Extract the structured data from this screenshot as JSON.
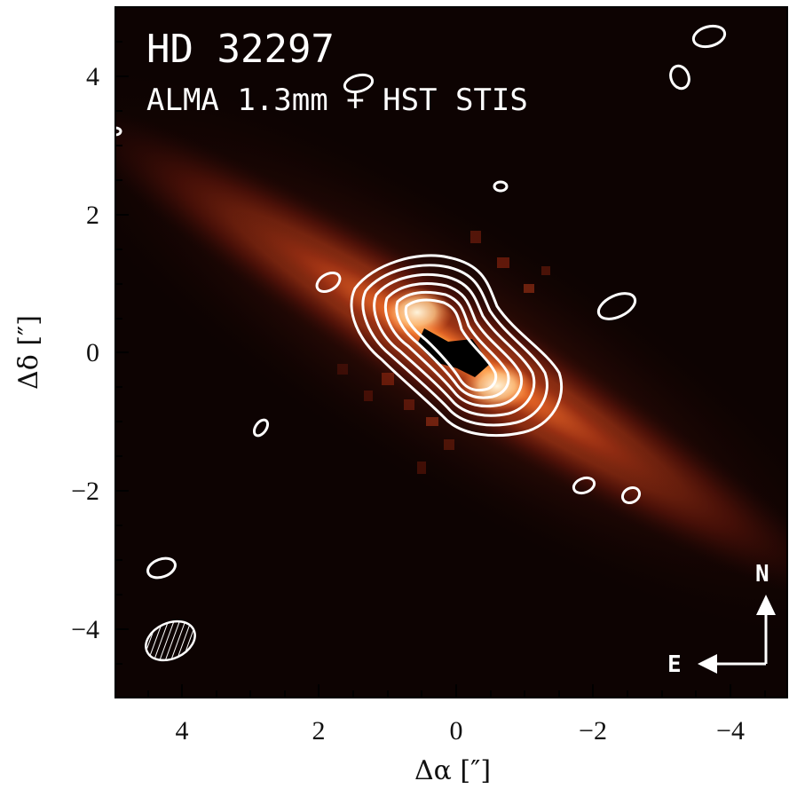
{
  "image": {
    "title": "HD 32297",
    "subtitle": "ALMA 1.3mm + HST STIS",
    "x_axis_label": "Δα [″]",
    "y_axis_label": "Δδ [″]",
    "x_ticks": [
      "4",
      "2",
      "0",
      "−2",
      "−4"
    ],
    "y_ticks": [
      "4",
      "2",
      "0",
      "−2",
      "−4"
    ],
    "x_range": [
      5,
      -5
    ],
    "y_range": [
      -5,
      5
    ],
    "compass": {
      "north_label": "N",
      "east_label": "E"
    },
    "colors": {
      "background": "#0d0302",
      "disk_outer": "#7a1a0c",
      "disk_mid": "#d8501e",
      "disk_core": "#ffd690",
      "contour": "#ffffff",
      "frame": "#000000"
    }
  }
}
